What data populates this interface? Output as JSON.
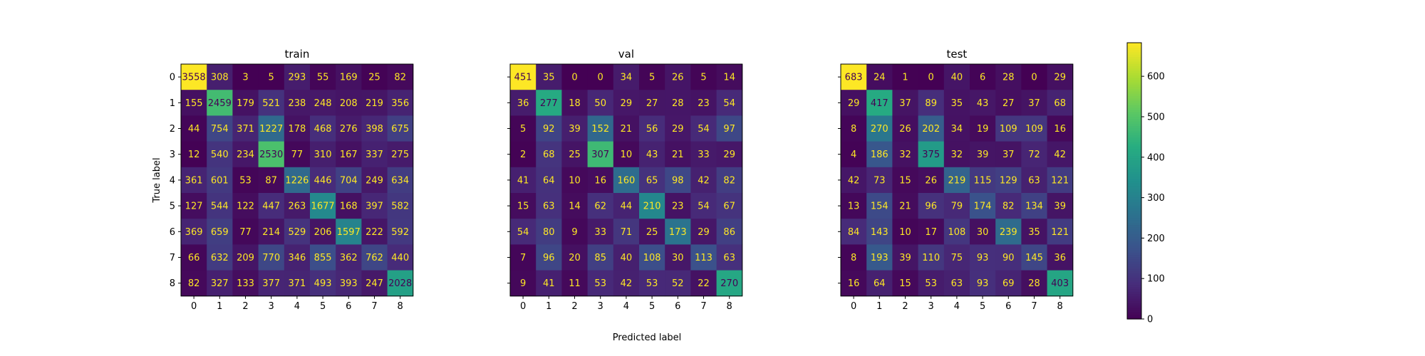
{
  "chart_data": [
    {
      "type": "heatmap",
      "title": "train",
      "labels": [
        "0",
        "1",
        "2",
        "3",
        "4",
        "5",
        "6",
        "7",
        "8"
      ],
      "matrix": [
        [
          3558,
          308,
          3,
          5,
          293,
          55,
          169,
          25,
          82
        ],
        [
          155,
          2459,
          179,
          521,
          238,
          248,
          208,
          219,
          356
        ],
        [
          44,
          754,
          371,
          1227,
          178,
          468,
          276,
          398,
          675
        ],
        [
          12,
          540,
          234,
          2530,
          77,
          310,
          167,
          337,
          275
        ],
        [
          361,
          601,
          53,
          87,
          1226,
          446,
          704,
          249,
          634
        ],
        [
          127,
          544,
          122,
          447,
          263,
          1677,
          168,
          397,
          582
        ],
        [
          369,
          659,
          77,
          214,
          529,
          206,
          1597,
          222,
          592
        ],
        [
          66,
          632,
          209,
          770,
          346,
          855,
          362,
          762,
          440
        ],
        [
          82,
          327,
          133,
          377,
          371,
          493,
          393,
          247,
          2028
        ]
      ]
    },
    {
      "type": "heatmap",
      "title": "val",
      "labels": [
        "0",
        "1",
        "2",
        "3",
        "4",
        "5",
        "6",
        "7",
        "8"
      ],
      "matrix": [
        [
          451,
          35,
          0,
          0,
          34,
          5,
          26,
          5,
          14
        ],
        [
          36,
          277,
          18,
          50,
          29,
          27,
          28,
          23,
          54
        ],
        [
          5,
          92,
          39,
          152,
          21,
          56,
          29,
          54,
          97
        ],
        [
          2,
          68,
          25,
          307,
          10,
          43,
          21,
          33,
          29
        ],
        [
          41,
          64,
          10,
          16,
          160,
          65,
          98,
          42,
          82
        ],
        [
          15,
          63,
          14,
          62,
          44,
          210,
          23,
          54,
          67
        ],
        [
          54,
          80,
          9,
          33,
          71,
          25,
          173,
          29,
          86
        ],
        [
          7,
          96,
          20,
          85,
          40,
          108,
          30,
          113,
          63
        ],
        [
          9,
          41,
          11,
          53,
          42,
          53,
          52,
          22,
          270
        ]
      ]
    },
    {
      "type": "heatmap",
      "title": "test",
      "labels": [
        "0",
        "1",
        "2",
        "3",
        "4",
        "5",
        "6",
        "7",
        "8"
      ],
      "matrix": [
        [
          683,
          24,
          1,
          0,
          40,
          6,
          28,
          0,
          29
        ],
        [
          29,
          417,
          37,
          89,
          35,
          43,
          27,
          37,
          68
        ],
        [
          8,
          270,
          26,
          202,
          34,
          19,
          109,
          109,
          16
        ],
        [
          4,
          186,
          32,
          375,
          32,
          39,
          37,
          72,
          42
        ],
        [
          42,
          73,
          15,
          26,
          219,
          115,
          129,
          63,
          121
        ],
        [
          13,
          154,
          21,
          96,
          79,
          174,
          82,
          134,
          39
        ],
        [
          84,
          143,
          10,
          17,
          108,
          30,
          239,
          35,
          121
        ],
        [
          8,
          193,
          39,
          110,
          75,
          93,
          90,
          145,
          36
        ],
        [
          16,
          64,
          15,
          53,
          63,
          93,
          69,
          28,
          403
        ]
      ]
    }
  ],
  "shared": {
    "xlabel": "Predicted label",
    "ylabel": "True label",
    "colormap": "viridis",
    "colorbar": {
      "vmin": 0,
      "vmax": 683,
      "ticks": [
        0,
        100,
        200,
        300,
        400,
        500,
        600
      ]
    }
  }
}
